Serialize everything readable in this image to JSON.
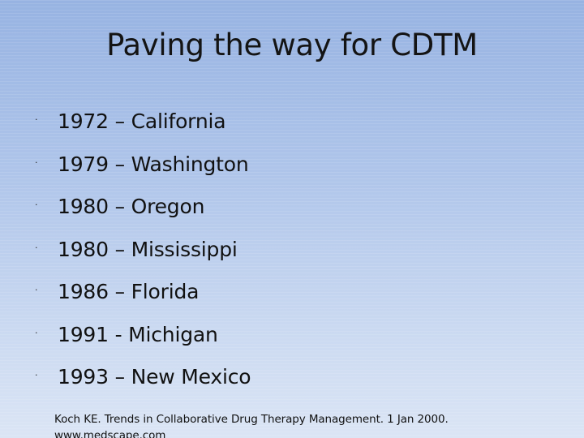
{
  "slide": {
    "title": "Paving the way for CDTM",
    "bullet_glyph": "·",
    "bullets": [
      "1972 – California",
      "1979 – Washington",
      "1980 – Oregon",
      "1980 – Mississippi",
      "1986 – Florida",
      "1991 - Michigan",
      "1993 – New Mexico"
    ],
    "citation": {
      "line1": "Koch KE. Trends in Collaborative Drug Therapy Management.  1 Jan 2000.",
      "line2": "www.medscape.com"
    },
    "colors": {
      "background_top": "#97b3e2",
      "background_bottom": "#dbe5f5",
      "text": "#111111"
    }
  }
}
